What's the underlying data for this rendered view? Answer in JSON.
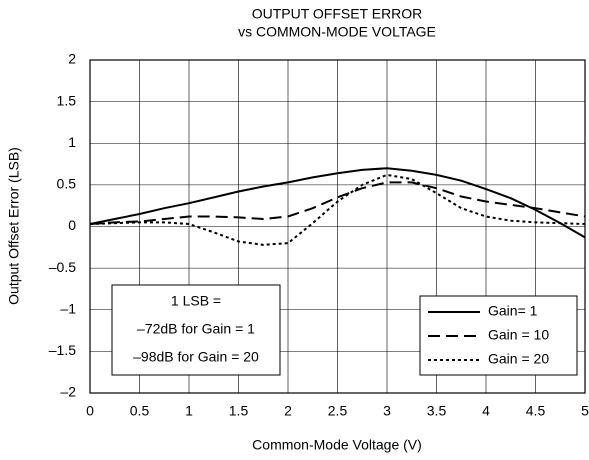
{
  "chart_data": {
    "type": "line",
    "title": [
      "OUTPUT OFFSET ERROR",
      "vs COMMON-MODE VOLTAGE"
    ],
    "xlabel": "Common-Mode Voltage (V)",
    "ylabel": "Output Offset Error (LSB)",
    "x": [
      0,
      0.25,
      0.5,
      0.75,
      1,
      1.25,
      1.5,
      1.75,
      2,
      2.25,
      2.5,
      2.75,
      3,
      3.25,
      3.5,
      3.75,
      4,
      4.25,
      4.5,
      4.75,
      5
    ],
    "series": [
      {
        "name": "Gain= 1",
        "color": "#000000",
        "dash": "solid",
        "values": [
          0.03,
          0.09,
          0.15,
          0.22,
          0.28,
          0.35,
          0.42,
          0.48,
          0.53,
          0.59,
          0.64,
          0.68,
          0.7,
          0.67,
          0.62,
          0.55,
          0.45,
          0.34,
          0.2,
          0.04,
          -0.13
        ]
      },
      {
        "name": "Gain = 10",
        "color": "#000000",
        "dash": "dashed",
        "values": [
          0.03,
          0.05,
          0.06,
          0.09,
          0.12,
          0.12,
          0.11,
          0.09,
          0.12,
          0.22,
          0.35,
          0.46,
          0.53,
          0.53,
          0.46,
          0.36,
          0.3,
          0.26,
          0.22,
          0.17,
          0.12
        ]
      },
      {
        "name": "Gain = 20",
        "color": "#000000",
        "dash": "dotted",
        "values": [
          0.03,
          0.04,
          0.05,
          0.05,
          0.03,
          -0.07,
          -0.18,
          -0.22,
          -0.2,
          0.04,
          0.3,
          0.5,
          0.62,
          0.57,
          0.4,
          0.22,
          0.12,
          0.07,
          0.05,
          0.04,
          0.03
        ]
      }
    ],
    "xlim": [
      0,
      5
    ],
    "xticks": [
      0,
      0.5,
      1,
      1.5,
      2,
      2.5,
      3,
      3.5,
      4,
      4.5,
      5
    ],
    "ylim": [
      -2,
      2
    ],
    "yticks": [
      {
        "value": -2,
        "label": "–2"
      },
      {
        "value": -1.5,
        "label": "–1.5"
      },
      {
        "value": -1,
        "label": "–1"
      },
      {
        "value": -0.5,
        "label": "–0.5"
      },
      0,
      0.5,
      1,
      1.5,
      2
    ],
    "grid": true,
    "legend": "lower right",
    "annotation": [
      "1 LSB =",
      "–72dB for Gain = 1",
      "–98dB for Gain = 20"
    ]
  }
}
